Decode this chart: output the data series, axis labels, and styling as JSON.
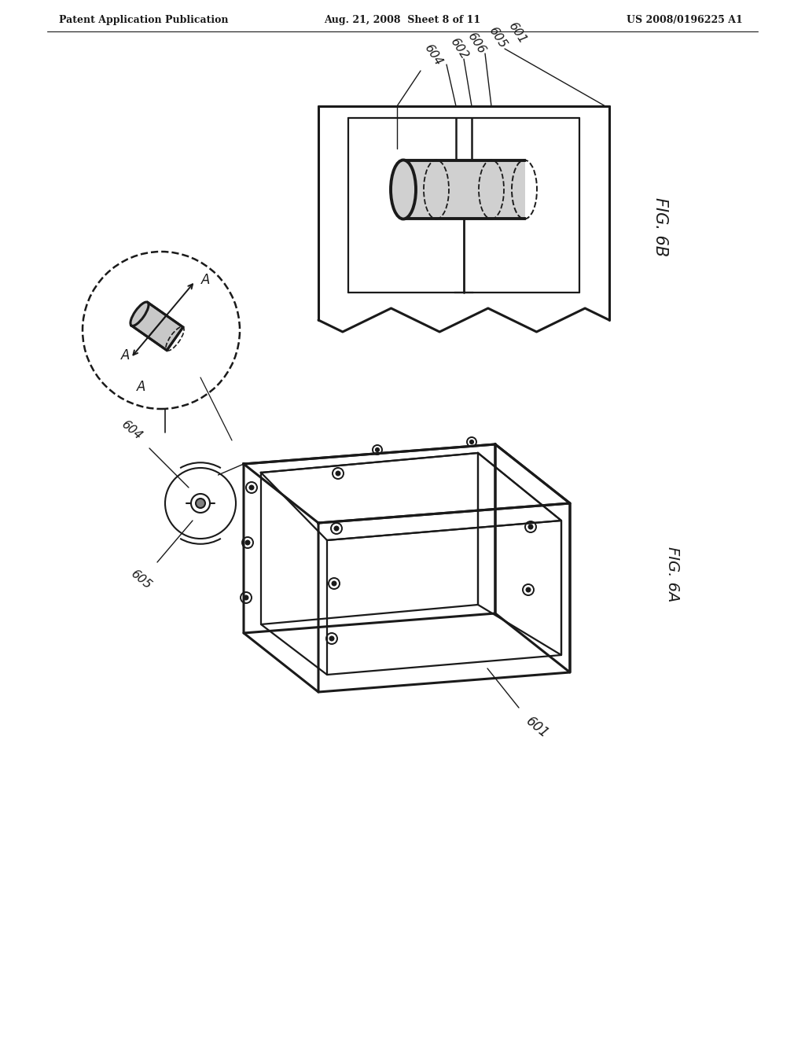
{
  "bg_color": "#ffffff",
  "line_color": "#1a1a1a",
  "header_left": "Patent Application Publication",
  "header_center": "Aug. 21, 2008  Sheet 8 of 11",
  "header_right": "US 2008/0196225 A1",
  "fig6b_label": "FIG. 6B",
  "fig6a_label": "FIG. 6A",
  "labels_6b": [
    "604",
    "602",
    "606",
    "605",
    "601"
  ]
}
